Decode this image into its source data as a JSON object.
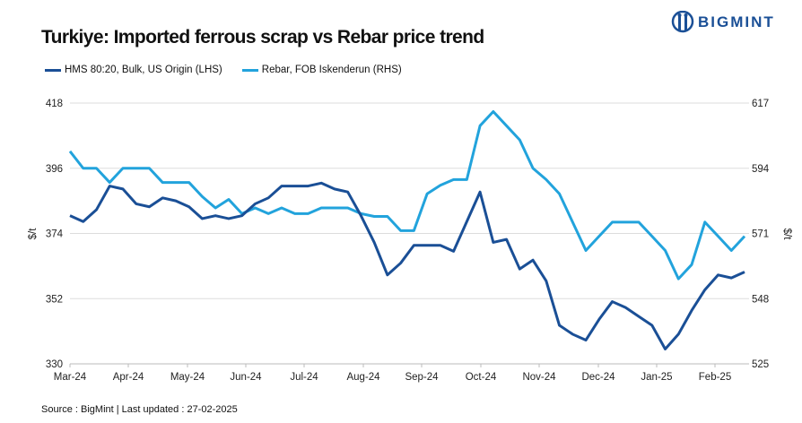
{
  "brand": {
    "name": "BIGMINT",
    "color": "#1a4f96"
  },
  "chart_data": {
    "type": "line",
    "title": "Turkiye: Imported ferrous scrap vs Rebar price trend",
    "x_tick_labels": [
      "Mar-24",
      "Apr-24",
      "May-24",
      "Jun-24",
      "Jul-24",
      "Aug-24",
      "Sep-24",
      "Oct-24",
      "Nov-24",
      "Dec-24",
      "Jan-25",
      "Feb-25"
    ],
    "x_frequency": "weekly",
    "y_left": {
      "label": "$/t",
      "range": [
        330,
        418
      ],
      "ticks": [
        330,
        352,
        374,
        396,
        418
      ]
    },
    "y_right": {
      "label": "$/t",
      "range": [
        525,
        617
      ],
      "ticks": [
        525,
        548,
        571,
        594,
        617
      ]
    },
    "grid": "horizontal",
    "legend_placement": "top-left",
    "series": [
      {
        "name": "HMS 80:20, Bulk, US Origin (LHS)",
        "axis": "left",
        "color": "#1a4f96",
        "values": [
          380,
          378,
          382,
          390,
          389,
          384,
          383,
          386,
          385,
          383,
          379,
          380,
          379,
          380,
          384,
          386,
          390,
          390,
          390,
          391,
          389,
          388,
          380,
          371,
          360,
          364,
          370,
          370,
          370,
          368,
          378,
          388,
          371,
          372,
          362,
          365,
          358,
          343,
          340,
          338,
          345,
          351,
          349,
          346,
          343,
          335,
          340,
          348,
          355,
          360,
          359,
          361
        ]
      },
      {
        "name": "Rebar, FOB Iskenderun (RHS)",
        "axis": "right",
        "color": "#22a3dc",
        "values": [
          600,
          594,
          594,
          589,
          594,
          594,
          594,
          589,
          589,
          589,
          584,
          580,
          583,
          578,
          580,
          578,
          580,
          578,
          578,
          580,
          580,
          580,
          578,
          577,
          577,
          572,
          572,
          585,
          588,
          590,
          590,
          609,
          614,
          609,
          604,
          594,
          590,
          585,
          575,
          565,
          570,
          575,
          575,
          575,
          570,
          565,
          555,
          560,
          575,
          570,
          565,
          570
        ]
      }
    ]
  },
  "source": "Source : BigMint | Last updated : 27-02-2025"
}
